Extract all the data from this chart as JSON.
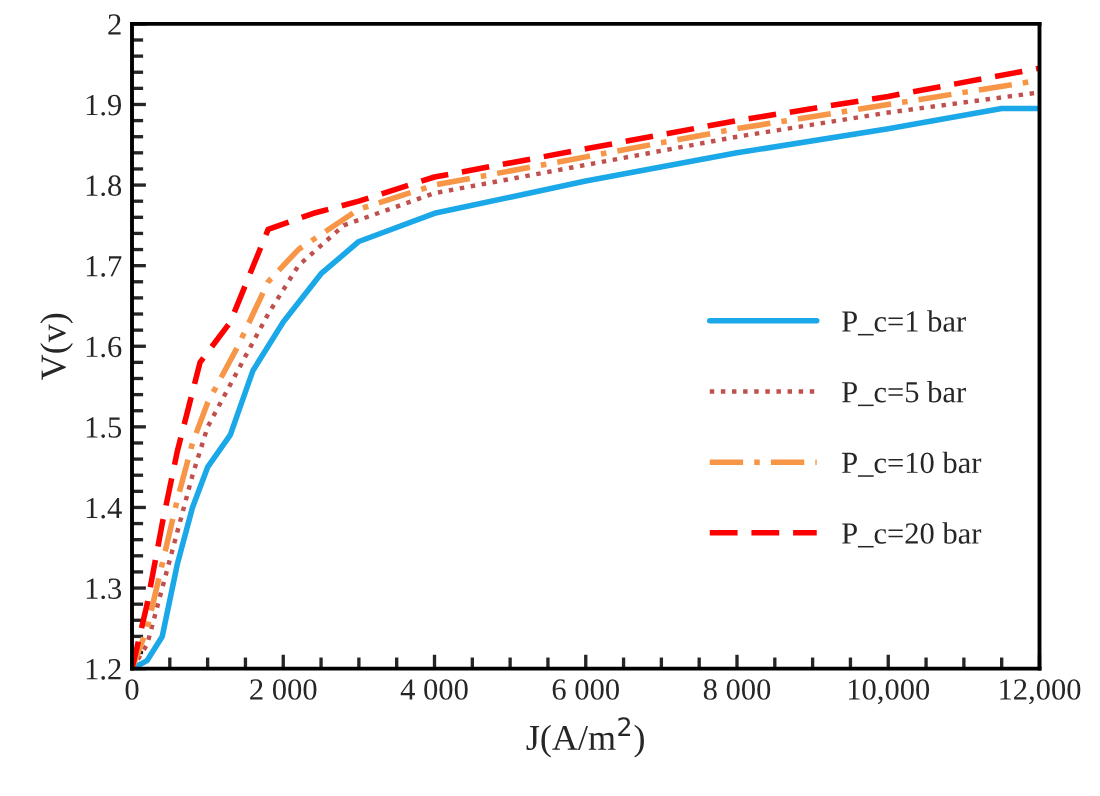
{
  "chart_data": {
    "type": "line",
    "xlabel": "J(A/m$^{2}$)",
    "ylabel": "V(v)",
    "xlim": [
      0,
      12000
    ],
    "ylim": [
      1.2,
      2
    ],
    "xticks": [
      0,
      {
        "value": 2000,
        "label": "2 000"
      },
      {
        "value": 4000,
        "label": "4 000"
      },
      {
        "value": 6000,
        "label": "6 000"
      },
      {
        "value": 8000,
        "label": "8 000"
      },
      {
        "value": 10000,
        "label": "10,000"
      },
      {
        "value": 12000,
        "label": "12,000"
      }
    ],
    "yticks": [
      1.2,
      1.3,
      1.4,
      1.5,
      1.6,
      1.7,
      1.8,
      1.9,
      2
    ],
    "grid": false,
    "legend": "right",
    "marker": "none",
    "series": [
      {
        "name": "P_c=1 bar",
        "color": "#1ba8e8",
        "line_style": "solid",
        "x": [
          0,
          200,
          400,
          600,
          800,
          1000,
          1300,
          1600,
          2000,
          2500,
          3000,
          4000,
          5000,
          6000,
          8000,
          10000,
          11500,
          12000
        ],
        "values": [
          1.2,
          1.21,
          1.24,
          1.33,
          1.4,
          1.45,
          1.49,
          1.57,
          1.63,
          1.69,
          1.73,
          1.765,
          1.785,
          1.805,
          1.84,
          1.87,
          1.895,
          1.895
        ]
      },
      {
        "name": "P_c=5 bar",
        "color": "#c0504d",
        "line_style": "dotted",
        "x": [
          0,
          200,
          400,
          600,
          800,
          1000,
          1400,
          1800,
          2200,
          2800,
          4000,
          6000,
          8000,
          10000,
          12000
        ],
        "values": [
          1.2,
          1.23,
          1.3,
          1.37,
          1.44,
          1.5,
          1.57,
          1.64,
          1.7,
          1.75,
          1.79,
          1.825,
          1.86,
          1.89,
          1.915
        ]
      },
      {
        "name": "P_c=10 bar",
        "color": "#f79646",
        "line_style": "dashdot",
        "x": [
          0,
          200,
          400,
          600,
          800,
          1000,
          1400,
          1800,
          2200,
          3000,
          4000,
          6000,
          8000,
          10000,
          12000
        ],
        "values": [
          1.2,
          1.25,
          1.33,
          1.41,
          1.48,
          1.53,
          1.6,
          1.68,
          1.72,
          1.77,
          1.8,
          1.835,
          1.87,
          1.9,
          1.93
        ]
      },
      {
        "name": "P_c=20 bar",
        "color": "#ff0000",
        "line_style": "dashed",
        "x": [
          0,
          200,
          400,
          600,
          900,
          1300,
          1800,
          2400,
          3000,
          4000,
          6000,
          8000,
          10000,
          12000
        ],
        "values": [
          1.2,
          1.28,
          1.38,
          1.47,
          1.58,
          1.63,
          1.745,
          1.765,
          1.78,
          1.81,
          1.845,
          1.88,
          1.91,
          1.945
        ]
      }
    ]
  }
}
